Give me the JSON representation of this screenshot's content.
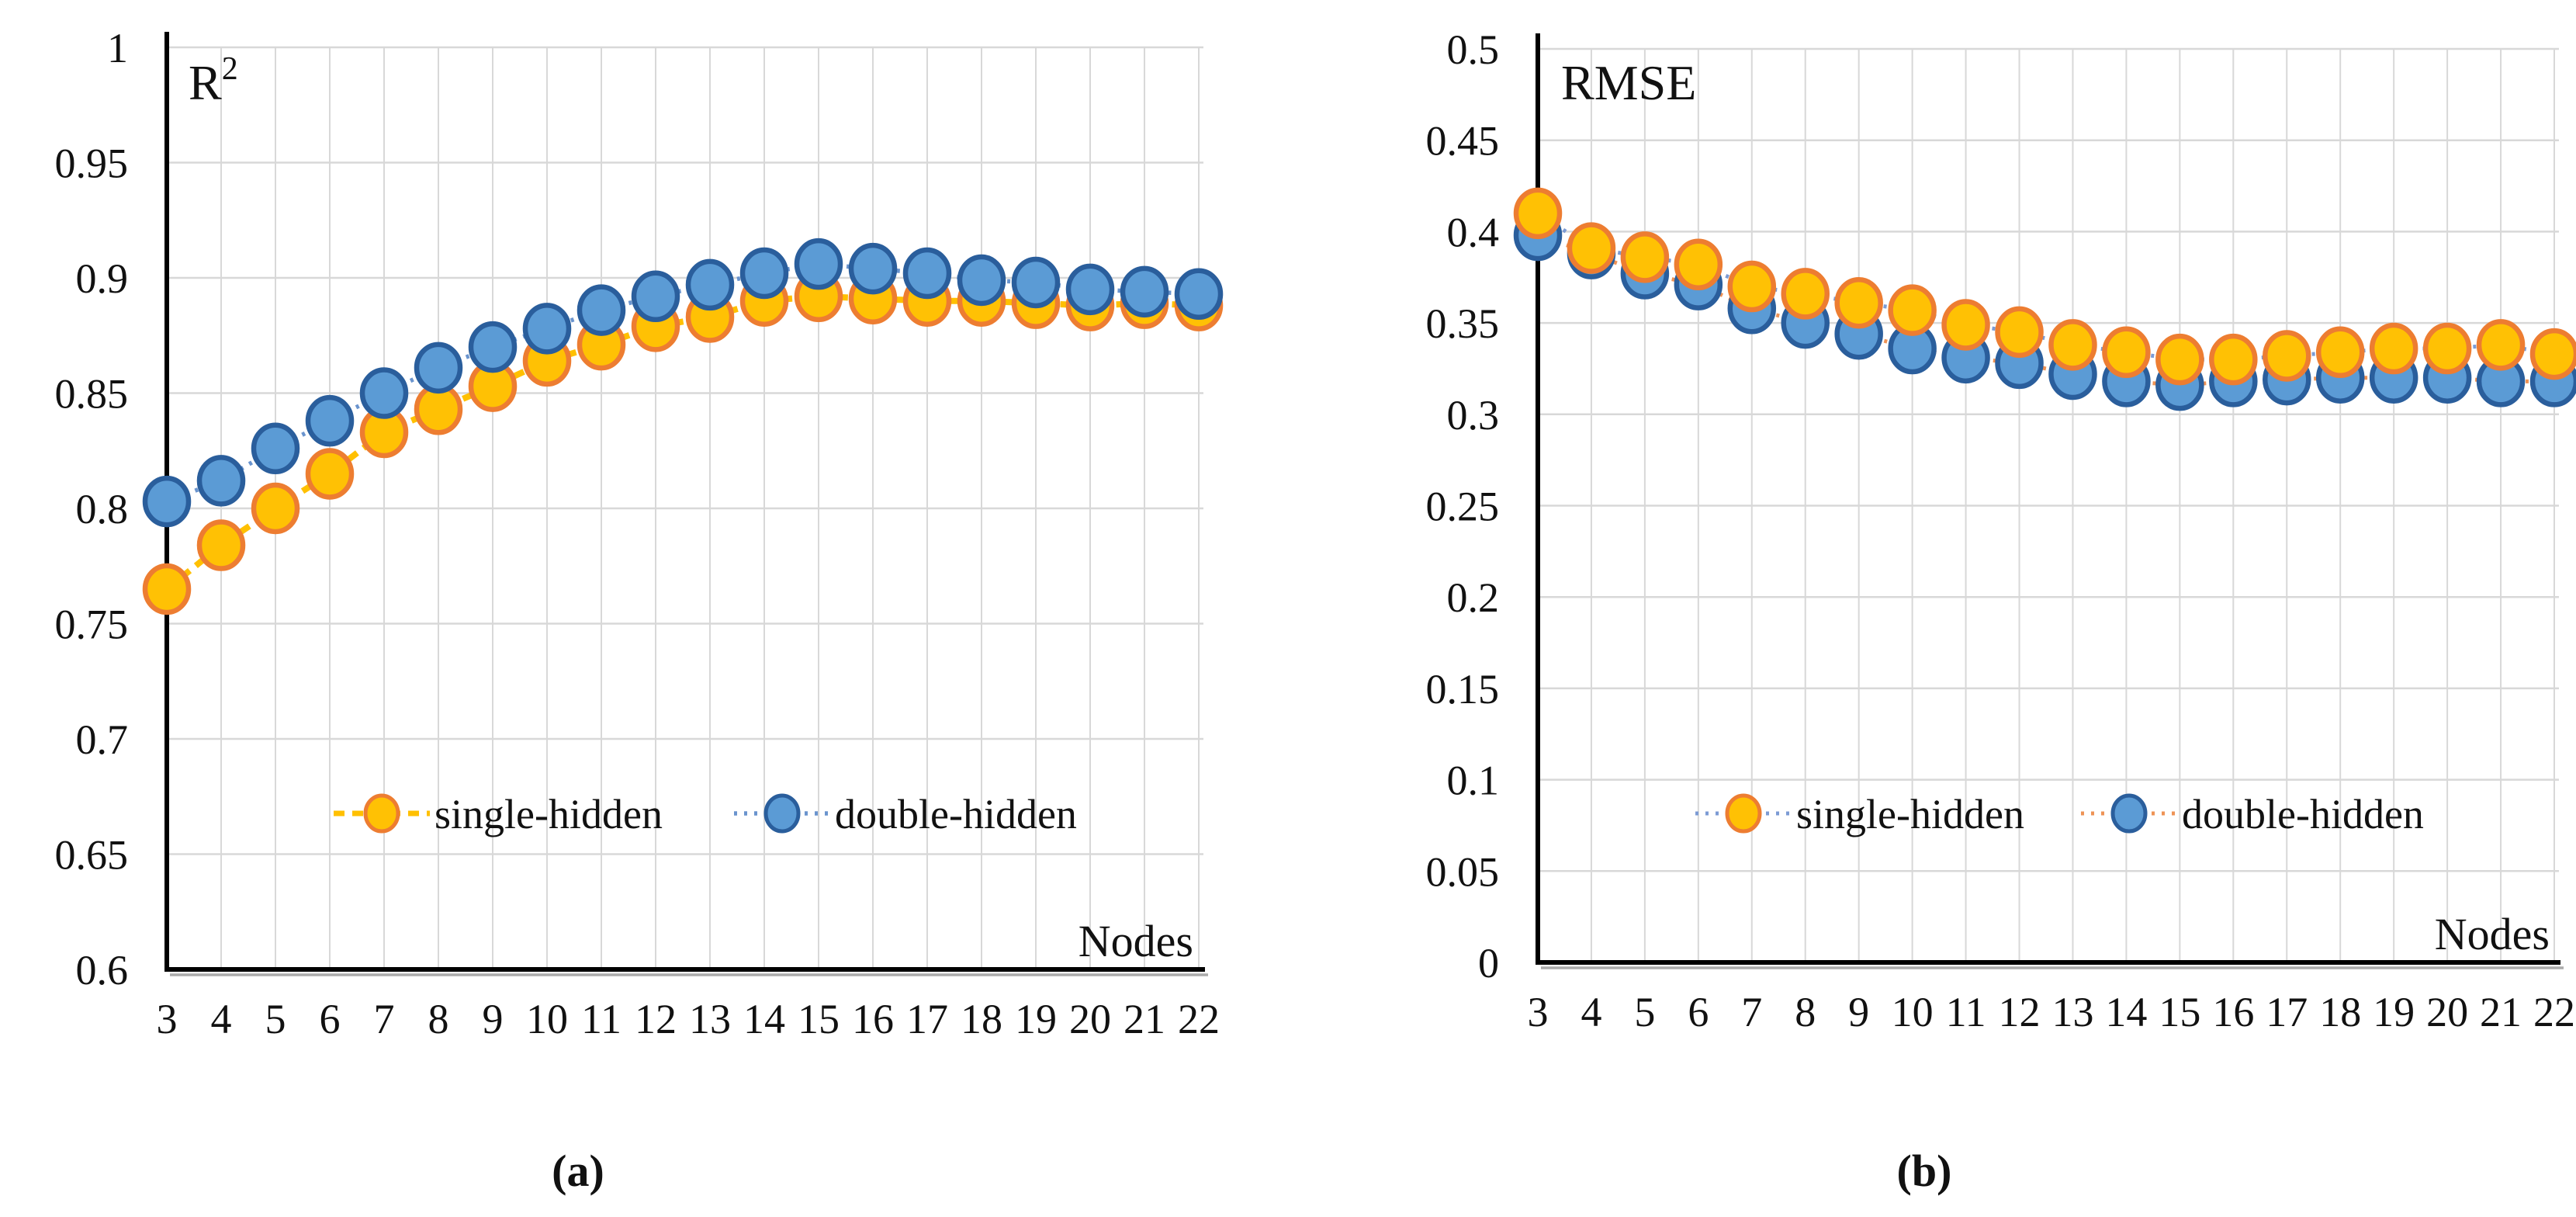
{
  "figure": {
    "panels": [
      {
        "caption": "(a)"
      },
      {
        "caption": "(b)"
      }
    ]
  },
  "chart_data": [
    {
      "type": "line",
      "title": "R",
      "title_superscript": "2",
      "xlabel": "Nodes",
      "x": [
        3,
        4,
        5,
        6,
        7,
        8,
        9,
        10,
        11,
        12,
        13,
        14,
        15,
        16,
        17,
        18,
        19,
        20,
        21,
        22
      ],
      "x_tick_labels": [
        "3",
        "4",
        "5",
        "6",
        "7",
        "8",
        "9",
        "10",
        "11",
        "12",
        "13",
        "14",
        "15",
        "16",
        "17",
        "18",
        "19",
        "20",
        "21",
        "22"
      ],
      "ylim": [
        0.6,
        1.0
      ],
      "ytick_step": 0.05,
      "y_tick_labels_top_to_bottom": [
        "1",
        "0.95",
        "0.9",
        "0.85",
        "0.8",
        "0.75",
        "0.7",
        "0.65",
        "0.6"
      ],
      "grid": true,
      "legend_position": "inside-bottom-center",
      "draw_order": [
        0,
        1
      ],
      "series": [
        {
          "name": "single-hidden",
          "values": [
            0.765,
            0.784,
            0.8,
            0.815,
            0.833,
            0.843,
            0.853,
            0.864,
            0.871,
            0.879,
            0.883,
            0.89,
            0.892,
            0.891,
            0.89,
            0.89,
            0.889,
            0.888,
            0.889,
            0.888
          ],
          "marker_fill": "#FFC104",
          "marker_stroke": "#ED7D31",
          "line_color": "#FFC000",
          "line_dash": "14 10",
          "line_width": 8
        },
        {
          "name": "double-hidden",
          "values": [
            0.803,
            0.812,
            0.826,
            0.838,
            0.85,
            0.861,
            0.87,
            0.878,
            0.886,
            0.892,
            0.897,
            0.902,
            0.906,
            0.904,
            0.902,
            0.899,
            0.898,
            0.895,
            0.894,
            0.893
          ],
          "marker_fill": "#5B9BD5",
          "marker_stroke": "#2A5E9C",
          "line_color": "#6A94CE",
          "line_dash": "4 9",
          "line_width": 5.5
        }
      ]
    },
    {
      "type": "line",
      "title": "RMSE",
      "title_superscript": "",
      "xlabel": "Nodes",
      "x": [
        3,
        4,
        5,
        6,
        7,
        8,
        9,
        10,
        11,
        12,
        13,
        14,
        15,
        16,
        17,
        18,
        19,
        20,
        21,
        22
      ],
      "x_tick_labels": [
        "3",
        "4",
        "5",
        "6",
        "7",
        "8",
        "9",
        "10",
        "11",
        "12",
        "13",
        "14",
        "15",
        "16",
        "17",
        "18",
        "19",
        "20",
        "21",
        "22"
      ],
      "ylim": [
        0,
        0.5
      ],
      "ytick_step": 0.05,
      "y_tick_labels_top_to_bottom": [
        "0.5",
        "0.45",
        "0.4",
        "0.35",
        "0.3",
        "0.25",
        "0.2",
        "0.15",
        "0.1",
        "0.05",
        "0"
      ],
      "grid": true,
      "legend_position": "inside-bottom-center",
      "draw_order": [
        1,
        0
      ],
      "series": [
        {
          "name": "single-hidden",
          "values": [
            0.41,
            0.391,
            0.386,
            0.382,
            0.37,
            0.366,
            0.361,
            0.357,
            0.349,
            0.345,
            0.338,
            0.334,
            0.33,
            0.33,
            0.332,
            0.334,
            0.336,
            0.336,
            0.338,
            0.333
          ],
          "marker_fill": "#FFC104",
          "marker_stroke": "#ED7D31",
          "line_color": "#7C9BD4",
          "line_dash": "4 9",
          "line_width": 5
        },
        {
          "name": "double-hidden",
          "values": [
            0.398,
            0.388,
            0.377,
            0.371,
            0.358,
            0.35,
            0.344,
            0.336,
            0.331,
            0.328,
            0.322,
            0.318,
            0.316,
            0.318,
            0.319,
            0.32,
            0.32,
            0.32,
            0.318,
            0.318
          ],
          "marker_fill": "#5B9BD5",
          "marker_stroke": "#2A5E9C",
          "line_color": "#EE9356",
          "line_dash": "4 9",
          "line_width": 5
        }
      ]
    }
  ]
}
